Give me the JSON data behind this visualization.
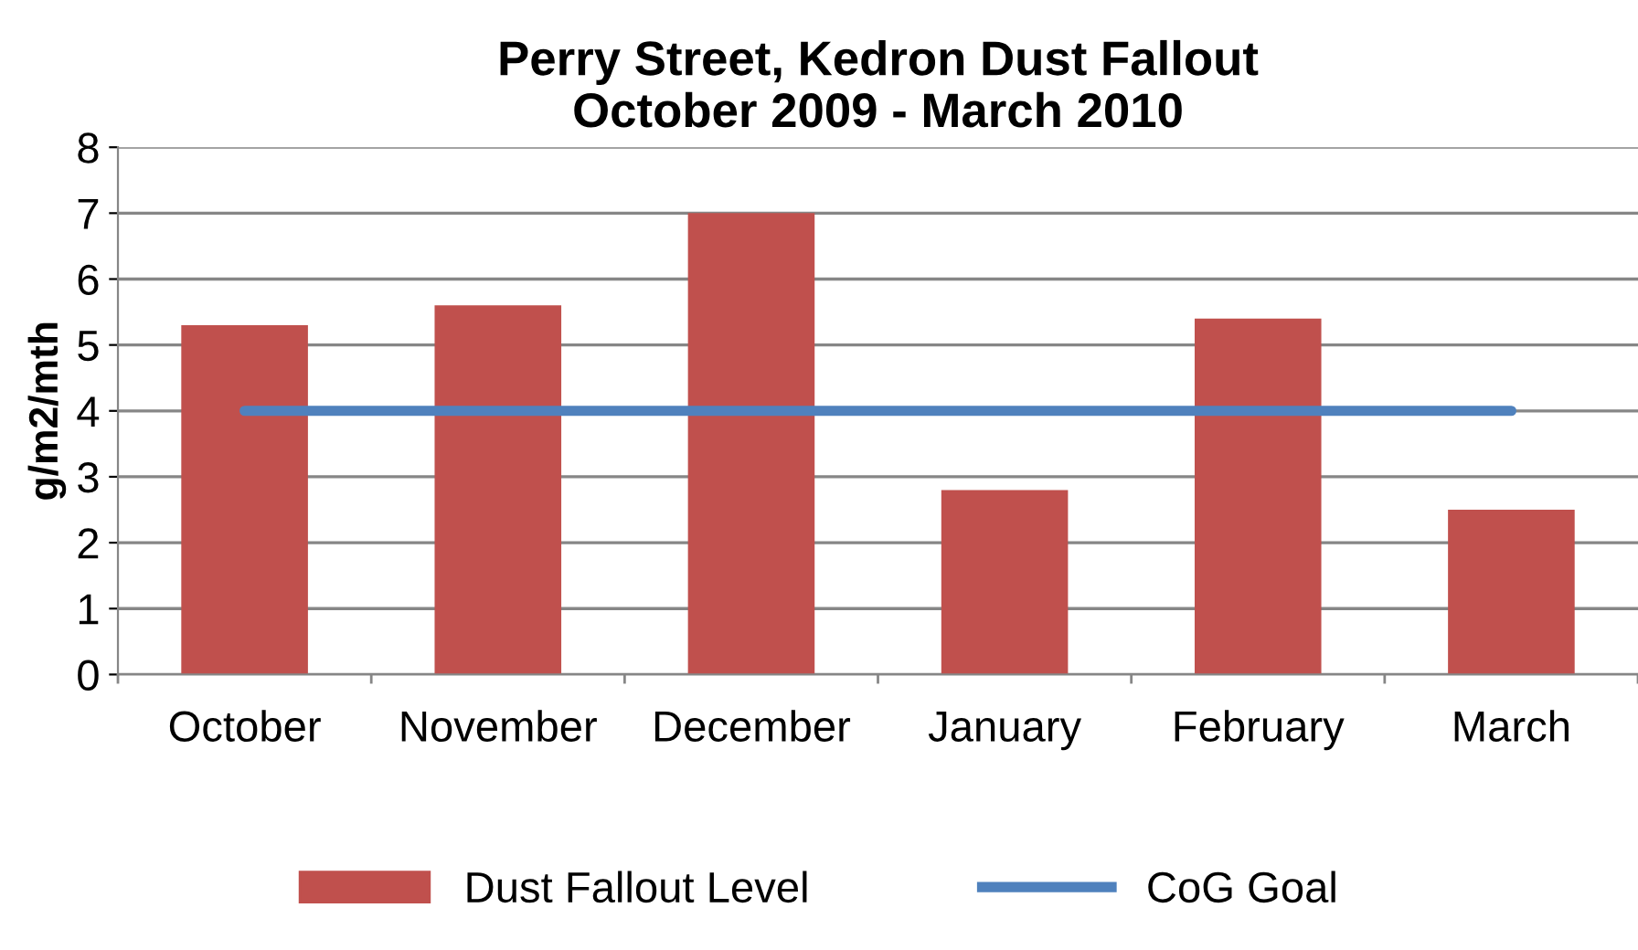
{
  "chart_data": {
    "type": "bar",
    "title": "Perry Street, Kedron Dust Fallout\nOctober 2009 - March 2010",
    "ylabel": "g/m2/mth",
    "categories": [
      "October",
      "November",
      "December",
      "January",
      "February",
      "March"
    ],
    "series": [
      {
        "name": "Dust Fallout Level",
        "color": "#c0504d",
        "values": [
          5.3,
          5.6,
          7.0,
          2.8,
          5.4,
          2.5
        ]
      },
      {
        "name": "CoG Goal",
        "type": "line",
        "color": "#4f81bd",
        "values": [
          4,
          4,
          4,
          4,
          4,
          4
        ]
      }
    ],
    "ylim": [
      0,
      8
    ],
    "yticks": [
      0,
      1,
      2,
      3,
      4,
      5,
      6,
      7,
      8
    ],
    "grid": "y",
    "legend": "bottom",
    "marker": "none"
  }
}
